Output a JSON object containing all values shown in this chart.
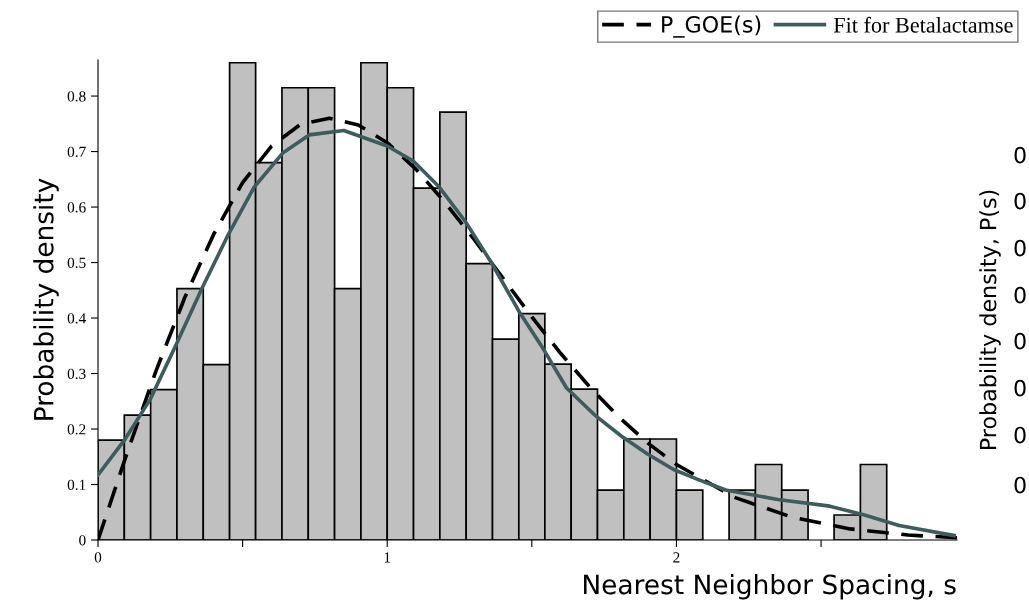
{
  "chart_data": {
    "type": "histogram",
    "xlabel": "Nearest Neighbor Spacing, s",
    "ylabel": "Probability density",
    "bins": [
      0,
      0.091,
      0.182,
      0.273,
      0.364,
      0.455,
      0.545,
      0.636,
      0.727,
      0.818,
      0.909,
      1.0,
      1.091,
      1.182,
      1.273,
      1.364,
      1.455,
      1.545,
      1.636,
      1.727,
      1.818,
      1.909,
      2.0,
      2.091,
      2.182,
      2.273,
      2.364,
      2.455,
      2.545,
      2.636,
      2.727
    ],
    "values": [
      0.18,
      0.225,
      0.271,
      0.453,
      0.316,
      0.86,
      0.68,
      0.815,
      0.815,
      0.453,
      0.86,
      0.815,
      0.634,
      0.771,
      0.498,
      0.362,
      0.408,
      0.317,
      0.272,
      0.09,
      0.182,
      0.182,
      0.09,
      0,
      0.09,
      0.136,
      0.09,
      0,
      0.045,
      0.136
    ],
    "color": "#c0c0c0",
    "series": [
      {
        "name": "P_GOE(s)",
        "type": "line",
        "color": "#000000",
        "line_style": "dashed",
        "x": [
          0,
          0.1,
          0.2,
          0.3,
          0.4,
          0.5,
          0.6,
          0.7,
          0.8,
          0.9,
          1.0,
          1.1,
          1.2,
          1.3,
          1.4,
          1.5,
          1.6,
          1.7,
          1.8,
          1.9,
          2.0,
          2.2,
          2.4,
          2.6,
          2.8,
          2.97
        ],
        "values": [
          0,
          0.156,
          0.304,
          0.437,
          0.551,
          0.644,
          0.71,
          0.749,
          0.76,
          0.748,
          0.716,
          0.668,
          0.608,
          0.542,
          0.472,
          0.402,
          0.336,
          0.276,
          0.222,
          0.175,
          0.136,
          0.077,
          0.041,
          0.02,
          0.009,
          0.004
        ]
      },
      {
        "name": "Fit for Betalactamse",
        "type": "line",
        "color": "#3d5c5c",
        "line_style": "solid",
        "x": [
          0,
          0.09,
          0.18,
          0.27,
          0.36,
          0.45,
          0.54,
          0.64,
          0.73,
          0.85,
          1.0,
          1.09,
          1.18,
          1.27,
          1.36,
          1.46,
          1.54,
          1.62,
          1.72,
          1.81,
          1.9,
          1.99,
          2.08,
          2.17,
          2.35,
          2.53,
          2.65,
          2.77,
          2.96
        ],
        "values": [
          0.117,
          0.179,
          0.253,
          0.352,
          0.454,
          0.55,
          0.636,
          0.698,
          0.73,
          0.738,
          0.71,
          0.683,
          0.636,
          0.574,
          0.5,
          0.408,
          0.344,
          0.274,
          0.224,
          0.187,
          0.155,
          0.127,
          0.108,
          0.09,
          0.073,
          0.061,
          0.045,
          0.026,
          0.008
        ]
      }
    ],
    "xlim": [
      0,
      2.97
    ],
    "ylim": [
      0,
      0.865
    ],
    "xticks": [
      0,
      {
        "value": 0.5,
        "label": null
      },
      1,
      {
        "value": 1.5,
        "label": null
      },
      2,
      {
        "value": 2.5,
        "label": null
      }
    ],
    "yticks": [
      0,
      0.1,
      0.2,
      0.3,
      0.4,
      0.5,
      0.6,
      0.7,
      0.8
    ],
    "grid": false,
    "legend": "top right",
    "annotations": [
      "Probability density, P(s)",
      "0",
      "0",
      "0",
      "0",
      "0",
      "0",
      "0",
      "0"
    ]
  }
}
